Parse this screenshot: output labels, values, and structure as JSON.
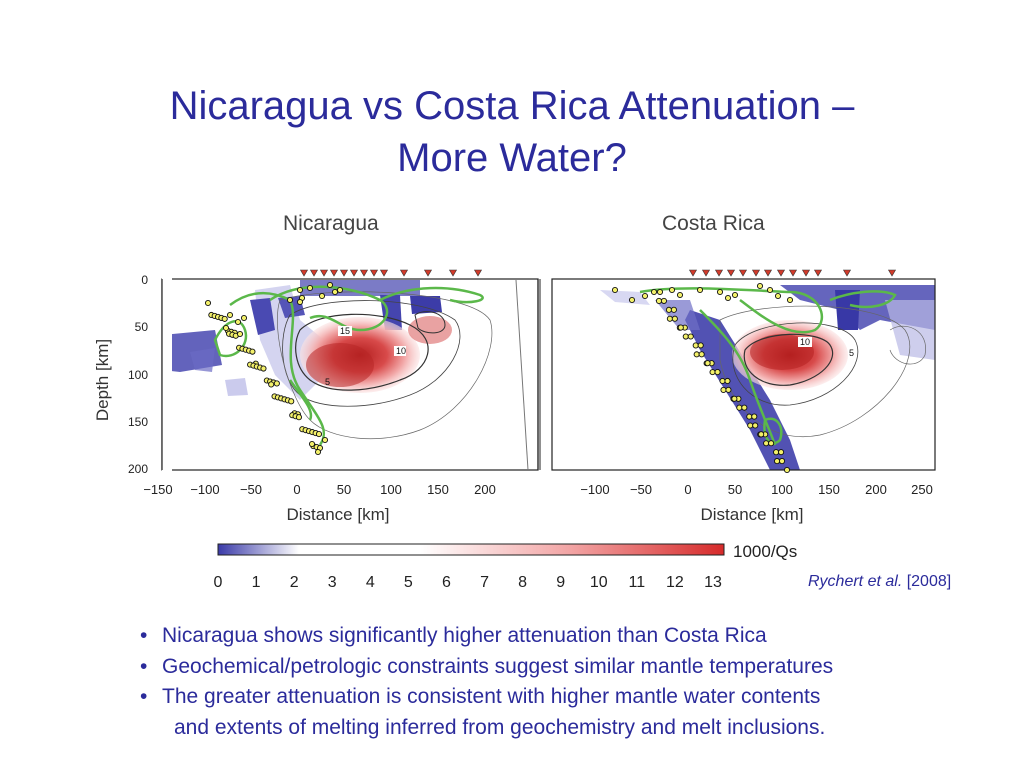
{
  "slide": {
    "title_line1": "Nicaragua vs Costa Rica Attenuation –",
    "title_line2": "More Water?"
  },
  "figure": {
    "panels": [
      {
        "title": "Nicaragua",
        "ylabel": "Depth [km]",
        "xlabel": "Distance [km]",
        "x_ticks": [
          "−150",
          "−100",
          "−50",
          "0",
          "50",
          "100",
          "150",
          "200"
        ],
        "y_ticks": [
          "0",
          "50",
          "100",
          "150",
          "200"
        ],
        "contour_labels": [
          "15",
          "10",
          "5"
        ]
      },
      {
        "title": "Costa Rica",
        "xlabel": "Distance [km]",
        "x_ticks": [
          "−100",
          "−50",
          "0",
          "50",
          "100",
          "150",
          "200",
          "250"
        ],
        "contour_labels": [
          "10",
          "5"
        ]
      }
    ],
    "colorbar": {
      "label": "1000/Qs",
      "ticks": [
        "0",
        "1",
        "2",
        "3",
        "4",
        "5",
        "6",
        "7",
        "8",
        "9",
        "10",
        "11",
        "12",
        "13"
      ],
      "colors": [
        "#3a3aa8",
        "#ffffff",
        "#d62a2a"
      ]
    }
  },
  "citation": {
    "author": "Rychert et al.",
    "bracket_open": " [",
    "year": "2008",
    "bracket_close": "]"
  },
  "bullets": [
    "Nicaragua shows significantly higher attenuation than Costa Rica",
    "Geochemical/petrologic constraints suggest similar mantle temperatures",
    "The greater attenuation is consistent with higher mantle water contents",
    "and extents of melting inferred from geochemistry and melt inclusions."
  ],
  "bullet_symbol": "•"
}
